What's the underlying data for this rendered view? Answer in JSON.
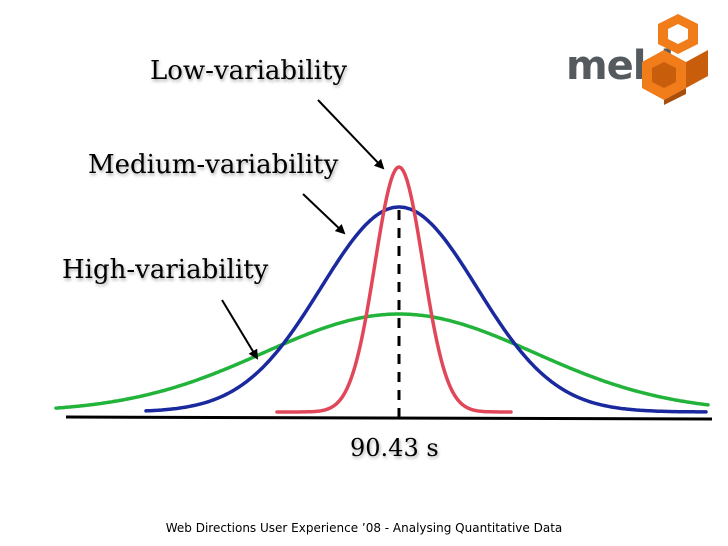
{
  "labels": {
    "low": "Low-variability",
    "medium": "Medium-variability",
    "high": "High-variability",
    "mean": "90.43  s"
  },
  "footer": "Web Directions User Experience ’08 - Analysing Quantitative Data",
  "logo": {
    "text": "meld",
    "colors": {
      "orange": "#f07c1a",
      "dark_orange": "#c85e0c",
      "grey": "#555a5e"
    }
  },
  "curves": [
    {
      "name": "low",
      "color": "#e0485a"
    },
    {
      "name": "medium",
      "color": "#1a2a9e"
    },
    {
      "name": "high",
      "color": "#22b33a"
    }
  ]
}
